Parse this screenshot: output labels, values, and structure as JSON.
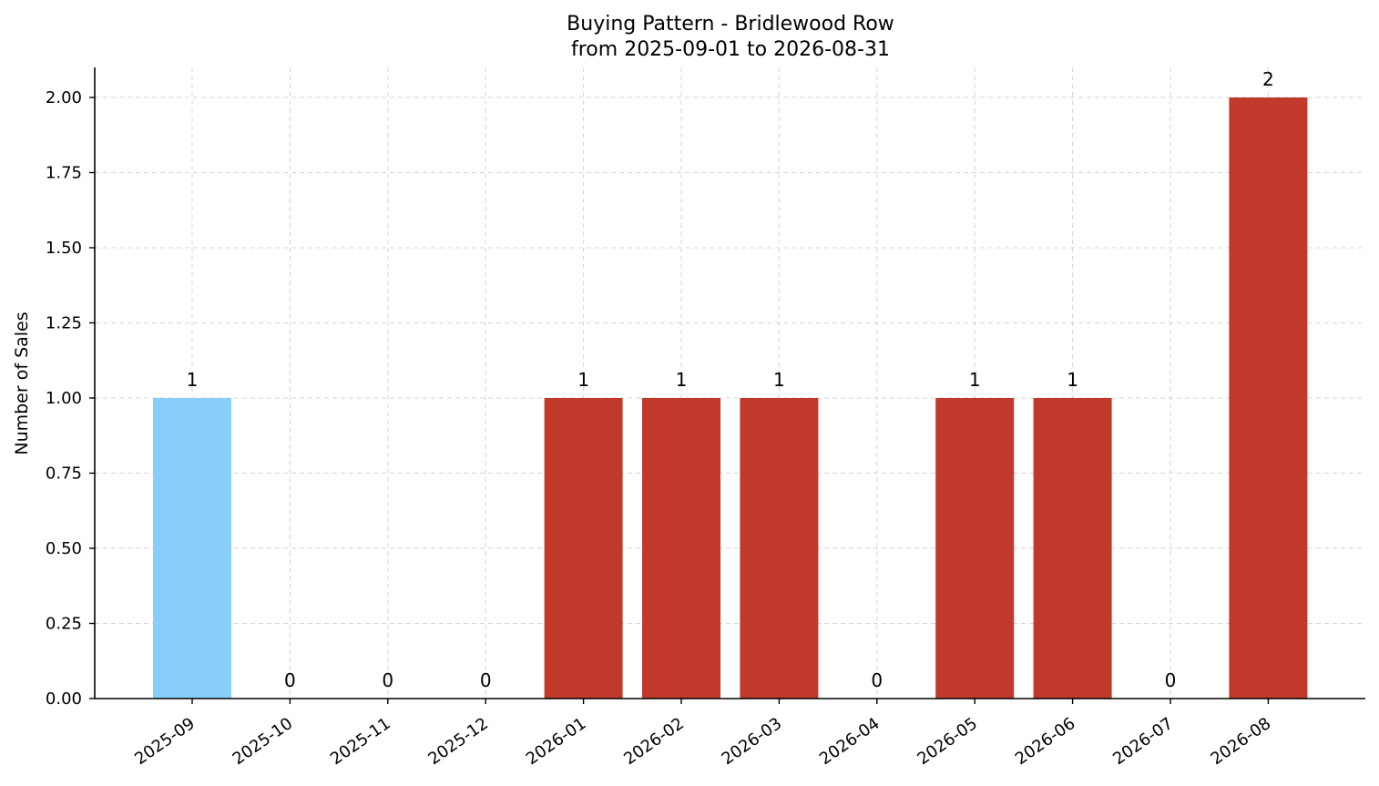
{
  "chart_data": {
    "type": "bar",
    "title": "Buying Pattern - Bridlewood Row",
    "subtitle": "from 2025-09-01 to 2026-08-31",
    "xlabel": "",
    "ylabel": "Number of Sales",
    "categories": [
      "2025-09",
      "2025-10",
      "2025-11",
      "2025-12",
      "2026-01",
      "2026-02",
      "2026-03",
      "2026-04",
      "2026-05",
      "2026-06",
      "2026-07",
      "2026-08"
    ],
    "values": [
      1,
      0,
      0,
      0,
      1,
      1,
      1,
      0,
      1,
      1,
      0,
      2
    ],
    "data_labels": [
      "1",
      "0",
      "0",
      "0",
      "1",
      "1",
      "1",
      "0",
      "1",
      "1",
      "0",
      "2"
    ],
    "bar_colors": [
      "#87CEFA",
      "#C0392B",
      "#C0392B",
      "#C0392B",
      "#C0392B",
      "#C0392B",
      "#C0392B",
      "#C0392B",
      "#C0392B",
      "#C0392B",
      "#C0392B",
      "#C0392B"
    ],
    "ylim": [
      0,
      2.1
    ],
    "yticks": [
      0,
      0.25,
      0.5,
      0.75,
      1.0,
      1.25,
      1.5,
      1.75,
      2.0
    ],
    "ytick_labels": [
      "0.00",
      "0.25",
      "0.50",
      "0.75",
      "1.00",
      "1.25",
      "1.50",
      "1.75",
      "2.00"
    ],
    "grid": true,
    "legend": false
  }
}
